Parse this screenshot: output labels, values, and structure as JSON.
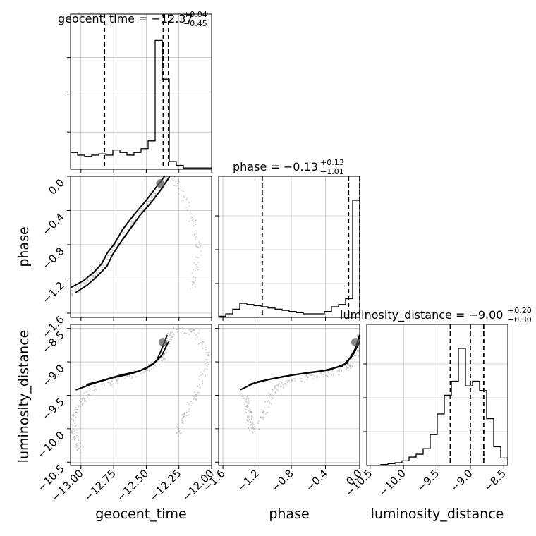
{
  "chart_data": {
    "type": "corner",
    "parameters": [
      "geocent_time",
      "phase",
      "luminosity_distance"
    ],
    "titles": {
      "geocent_time": {
        "name": "geocent_time",
        "median": "−12.37",
        "plus": "+0.04",
        "minus": "−0.45"
      },
      "phase": {
        "name": "phase",
        "median": "−0.13",
        "plus": "+0.13",
        "minus": "−1.01"
      },
      "luminosity_distance": {
        "name": "luminosity_distance",
        "median": "−9.00",
        "plus": "+0.20",
        "minus": "−0.30"
      }
    },
    "ranges": {
      "geocent_time": [
        -13.08,
        -12.0
      ],
      "phase": [
        -1.65,
        0.0
      ],
      "luminosity_distance": [
        -10.55,
        -8.44
      ]
    },
    "ticks": {
      "geocent_time": {
        "values": [
          -13.0,
          -12.75,
          -12.5,
          -12.25,
          -12.0
        ],
        "labels": [
          "−13.00",
          "−12.75",
          "−12.50",
          "−12.25",
          "−12.00"
        ]
      },
      "phase": {
        "values": [
          -1.6,
          -1.2,
          -0.8,
          -0.4,
          0.0
        ],
        "labels": [
          "−1.6",
          "−1.2",
          "−0.8",
          "−0.4",
          "0.0"
        ]
      },
      "luminosity_distance": {
        "values": [
          -10.5,
          -10.0,
          -9.5,
          -9.0,
          -8.5
        ],
        "labels": [
          "−10.5",
          "−10.0",
          "−9.5",
          "−9.0",
          "−8.5"
        ]
      }
    },
    "quantiles": {
      "geocent_time": [
        -12.82,
        -12.37,
        -12.33
      ],
      "phase": [
        -1.14,
        -0.13,
        0.0
      ],
      "luminosity_distance": [
        -9.3,
        -9.0,
        -8.8
      ]
    },
    "histograms": {
      "geocent_time": {
        "edges": [
          -13.08,
          -13.026,
          -12.972,
          -12.918,
          -12.864,
          -12.81,
          -12.756,
          -12.702,
          -12.648,
          -12.594,
          -12.54,
          -12.486,
          -12.432,
          -12.378,
          -12.324,
          -12.27,
          -12.216,
          -12.162,
          -12.108,
          -12.054,
          -12.0
        ],
        "counts": [
          13,
          11,
          10,
          11,
          12,
          11,
          15,
          13,
          11,
          13,
          16,
          22,
          100,
          70,
          6,
          3,
          1,
          1,
          1,
          1
        ]
      },
      "phase": {
        "edges": [
          -1.65,
          -1.5675,
          -1.485,
          -1.4025,
          -1.32,
          -1.2375,
          -1.155,
          -1.0725,
          -0.99,
          -0.9075,
          -0.825,
          -0.7425,
          -0.66,
          -0.5775,
          -0.495,
          -0.4125,
          -0.33,
          -0.2475,
          -0.165,
          -0.0825,
          0.0
        ],
        "counts": [
          1,
          3,
          7,
          12,
          11,
          10,
          9,
          8,
          7,
          6,
          5,
          4,
          3,
          3,
          3,
          5,
          9,
          11,
          16,
          100
        ]
      },
      "luminosity_distance": {
        "edges": [
          -10.55,
          -10.4445,
          -10.339,
          -10.2335,
          -10.128,
          -10.0225,
          -9.917,
          -9.8115,
          -9.706,
          -9.6005,
          -9.495,
          -9.3895,
          -9.284,
          -9.1785,
          -9.073,
          -8.9675,
          -8.862,
          -8.7565,
          -8.651,
          -8.5455,
          -8.44
        ],
        "counts": [
          0,
          0,
          1,
          2,
          3,
          5,
          9,
          12,
          18,
          33,
          55,
          75,
          90,
          125,
          85,
          90,
          80,
          50,
          20,
          8
        ]
      }
    },
    "contours_2d": {
      "geocent_time__phase": [
        [
          [
            -13.1,
            -1.32
          ],
          [
            -12.98,
            -1.22
          ],
          [
            -12.9,
            -1.12
          ],
          [
            -12.84,
            -1.02
          ],
          [
            -12.8,
            -0.9
          ],
          [
            -12.74,
            -0.78
          ],
          [
            -12.68,
            -0.62
          ],
          [
            -12.6,
            -0.46
          ],
          [
            -12.5,
            -0.28
          ],
          [
            -12.42,
            -0.12
          ],
          [
            -12.36,
            0.0
          ]
        ],
        [
          [
            -13.04,
            -1.36
          ],
          [
            -12.95,
            -1.27
          ],
          [
            -12.87,
            -1.16
          ],
          [
            -12.8,
            -1.05
          ],
          [
            -12.76,
            -0.92
          ],
          [
            -12.7,
            -0.78
          ],
          [
            -12.63,
            -0.63
          ],
          [
            -12.55,
            -0.46
          ],
          [
            -12.46,
            -0.3
          ],
          [
            -12.38,
            -0.14
          ],
          [
            -12.32,
            0.0
          ]
        ]
      ],
      "geocent_time__luminosity_distance": [
        [
          [
            -13.04,
            -9.42
          ],
          [
            -12.9,
            -9.32
          ],
          [
            -12.76,
            -9.24
          ],
          [
            -12.62,
            -9.18
          ],
          [
            -12.5,
            -9.1
          ],
          [
            -12.42,
            -8.98
          ],
          [
            -12.38,
            -8.8
          ],
          [
            -12.34,
            -8.6
          ]
        ],
        [
          [
            -12.96,
            -9.34
          ],
          [
            -12.84,
            -9.28
          ],
          [
            -12.7,
            -9.2
          ],
          [
            -12.56,
            -9.14
          ],
          [
            -12.45,
            -9.04
          ],
          [
            -12.38,
            -8.9
          ],
          [
            -12.33,
            -8.7
          ]
        ]
      ],
      "phase__luminosity_distance": [
        [
          [
            -1.4,
            -9.42
          ],
          [
            -1.2,
            -9.3
          ],
          [
            -0.9,
            -9.22
          ],
          [
            -0.6,
            -9.16
          ],
          [
            -0.35,
            -9.12
          ],
          [
            -0.15,
            -9.02
          ],
          [
            -0.05,
            -8.8
          ],
          [
            0.0,
            -8.6
          ]
        ],
        [
          [
            -1.3,
            -9.34
          ],
          [
            -1.05,
            -9.26
          ],
          [
            -0.75,
            -9.19
          ],
          [
            -0.45,
            -9.14
          ],
          [
            -0.2,
            -9.06
          ],
          [
            -0.08,
            -8.9
          ],
          [
            0.0,
            -8.7
          ]
        ]
      ]
    },
    "sample_tracks": {
      "geocent_time__phase": [
        [
          -13.09,
          -1.4
        ],
        [
          -12.98,
          -1.25
        ],
        [
          -12.88,
          -1.1
        ],
        [
          -12.78,
          -0.92
        ],
        [
          -12.7,
          -0.75
        ],
        [
          -12.6,
          -0.55
        ],
        [
          -12.5,
          -0.35
        ],
        [
          -12.42,
          -0.18
        ],
        [
          -12.36,
          -0.02
        ],
        [
          -12.28,
          -0.03
        ],
        [
          -12.15,
          -0.5
        ],
        [
          -12.1,
          -0.9
        ],
        [
          -12.15,
          -1.3
        ]
      ],
      "geocent_time__luminosity_distance": [
        [
          -13.0,
          -10.35
        ],
        [
          -13.05,
          -10.1
        ],
        [
          -13.06,
          -9.85
        ],
        [
          -13.0,
          -9.6
        ],
        [
          -12.9,
          -9.4
        ],
        [
          -12.7,
          -9.25
        ],
        [
          -12.5,
          -9.12
        ],
        [
          -12.38,
          -8.95
        ],
        [
          -12.33,
          -8.7
        ],
        [
          -12.3,
          -8.52
        ],
        [
          -12.12,
          -8.55
        ],
        [
          -12.02,
          -8.9
        ],
        [
          -12.1,
          -9.4
        ],
        [
          -12.2,
          -9.8
        ],
        [
          -12.26,
          -10.1
        ]
      ],
      "phase__luminosity_distance": [
        [
          -1.35,
          -9.5
        ],
        [
          -1.3,
          -9.7
        ],
        [
          -1.28,
          -9.9
        ],
        [
          -1.25,
          -10.05
        ],
        [
          -1.1,
          -9.7
        ],
        [
          -1.0,
          -9.4
        ],
        [
          -0.8,
          -9.3
        ],
        [
          -0.5,
          -9.2
        ],
        [
          -0.25,
          -9.15
        ],
        [
          -0.1,
          -9.05
        ],
        [
          -0.02,
          -8.8
        ],
        [
          0.0,
          -8.6
        ]
      ]
    },
    "xlabels": {
      "geocent_time": "geocent_time",
      "phase": "phase",
      "luminosity_distance": "luminosity_distance"
    },
    "ylabels": {
      "phase": "phase",
      "luminosity_distance": "luminosity_distance"
    },
    "grid": true,
    "colors": {
      "line": "#000000",
      "grid": "#b0b0b0",
      "scatter": "#9a9a9a",
      "contour_fill": "#555555"
    }
  }
}
